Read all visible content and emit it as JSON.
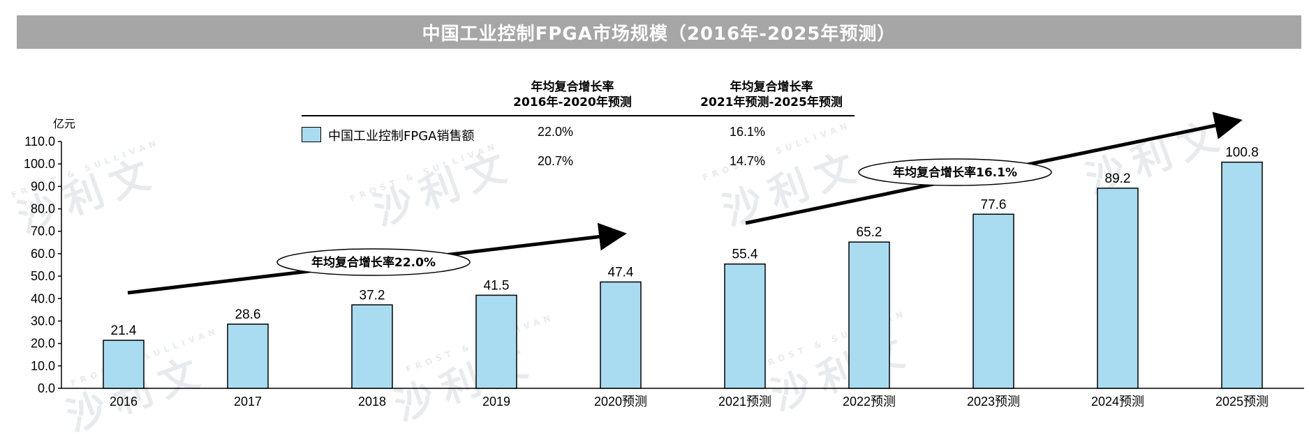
{
  "title": "中国工业控制FPGA市场规模（2016年-2025年预测）",
  "unit_label": "亿元",
  "cagr_table": {
    "header_1": [
      "年均复合增长率",
      "2016年-2020年预测"
    ],
    "header_2": [
      "年均复合增长率",
      "2021年预测-2025年预测"
    ],
    "legend_label": "中国工业控制FPGA销售额",
    "row_1": [
      "22.0%",
      "16.1%"
    ],
    "row_2": [
      "20.7%",
      "14.7%"
    ]
  },
  "annotations": {
    "cagr_1": "年均复合增长率22.0%",
    "cagr_2": "年均复合增长率16.1%"
  },
  "watermark": {
    "brand_cn": "沙利文",
    "brand_en": "FROST & SULLIVAN"
  },
  "colors": {
    "bar_fill": "#a9dcf0",
    "bar_stroke": "#000000",
    "title_bg": "#a6a6a6"
  },
  "chart_data": {
    "type": "bar",
    "categories": [
      "2016",
      "2017",
      "2018",
      "2019",
      "2020预测",
      "2021预测",
      "2022预测",
      "2023预测",
      "2024预测",
      "2025预测"
    ],
    "series": [
      {
        "name": "中国工业控制FPGA销售额",
        "values": [
          21.4,
          28.6,
          37.2,
          41.5,
          47.4,
          55.4,
          65.2,
          77.6,
          89.2,
          100.8
        ]
      }
    ],
    "data_labels": [
      "21.4",
      "28.6",
      "37.2",
      "41.5",
      "47.4",
      "55.4",
      "65.2",
      "77.6",
      "89.2",
      "100.8"
    ],
    "ylabel": "亿元",
    "ylim": [
      0,
      110
    ],
    "yticks": [
      "0.0",
      "10.0",
      "20.0",
      "30.0",
      "40.0",
      "50.0",
      "60.0",
      "70.0",
      "80.0",
      "90.0",
      "100.0",
      "110.0"
    ],
    "grid": false,
    "legend": "top"
  }
}
